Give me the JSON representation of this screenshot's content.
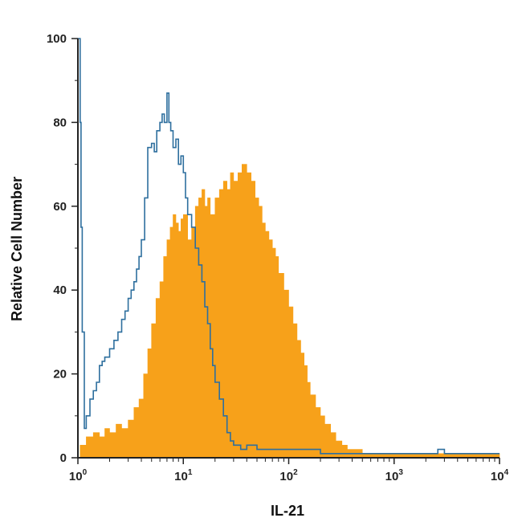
{
  "chart_data": {
    "type": "area",
    "xlabel": "IL-21",
    "ylabel": "Relative Cell Number",
    "x_scale": "log",
    "xlim": [
      1,
      10000
    ],
    "ylim": [
      0,
      100
    ],
    "x_ticks": [
      {
        "value": 1,
        "base": "10",
        "exp": "0"
      },
      {
        "value": 10,
        "base": "10",
        "exp": "1"
      },
      {
        "value": 100,
        "base": "10",
        "exp": "2"
      },
      {
        "value": 1000,
        "base": "10",
        "exp": "3"
      },
      {
        "value": 10000,
        "base": "10",
        "exp": "4"
      }
    ],
    "y_ticks": [
      0,
      20,
      40,
      60,
      80,
      100
    ],
    "grid": false,
    "series": [
      {
        "style": "filled",
        "color": "#f7a11a",
        "x": [
          1.05,
          1.2,
          1.4,
          1.6,
          1.8,
          2.0,
          2.3,
          2.6,
          3.0,
          3.4,
          3.8,
          4.2,
          4.6,
          5.0,
          5.5,
          6.0,
          6.5,
          7.0,
          7.5,
          8.0,
          8.5,
          9.0,
          9.5,
          10.0,
          11.0,
          12.0,
          13.0,
          14.0,
          15.0,
          16.0,
          17.0,
          18.0,
          20.0,
          22.0,
          24.0,
          26.0,
          28.0,
          30.0,
          33.0,
          36.0,
          40.0,
          44.0,
          48.0,
          52.0,
          56.0,
          60.0,
          65.0,
          70.0,
          75.0,
          80.0,
          90.0,
          100.0,
          110.0,
          120.0,
          130.0,
          140.0,
          150.0,
          160.0,
          180.0,
          200.0,
          220.0,
          250.0,
          280.0,
          320.0,
          360.0,
          400.0,
          500.0,
          700.0,
          1000.0,
          2000.0,
          5000.0,
          10000.0
        ],
        "y": [
          3,
          5,
          6,
          5,
          7,
          6,
          8,
          7,
          9,
          12,
          14,
          20,
          26,
          32,
          38,
          42,
          48,
          52,
          55,
          58,
          56,
          54,
          57,
          58,
          52,
          55,
          60,
          62,
          64,
          60,
          62,
          58,
          62,
          64,
          66,
          64,
          68,
          66,
          68,
          70,
          68,
          66,
          62,
          60,
          56,
          54,
          52,
          50,
          48,
          44,
          40,
          36,
          32,
          28,
          25,
          22,
          18,
          15,
          12,
          10,
          8,
          6,
          4,
          3,
          2,
          2,
          1,
          1,
          1,
          1,
          1,
          1
        ]
      },
      {
        "style": "outline",
        "color": "#2e6f9e",
        "x": [
          1.0,
          1.02,
          1.05,
          1.07,
          1.1,
          1.15,
          1.2,
          1.3,
          1.4,
          1.5,
          1.6,
          1.7,
          1.8,
          2.0,
          2.2,
          2.4,
          2.6,
          2.8,
          3.0,
          3.2,
          3.4,
          3.6,
          3.8,
          4.0,
          4.3,
          4.6,
          5.0,
          5.3,
          5.6,
          6.0,
          6.3,
          6.6,
          7.0,
          7.3,
          7.6,
          8.0,
          8.5,
          9.0,
          9.5,
          10.0,
          10.5,
          11.0,
          12.0,
          13.0,
          14.0,
          15.0,
          16.0,
          17.0,
          18.0,
          19.0,
          20.0,
          22.0,
          24.0,
          26.0,
          28.0,
          30.0,
          35.0,
          40.0,
          50.0,
          70.0,
          100.0,
          150.0,
          200.0,
          300.0,
          500.0,
          1000.0,
          2000.0,
          2600.0,
          2800.0,
          3000.0,
          4000.0,
          6000.0,
          10000.0
        ],
        "y": [
          100,
          100,
          80,
          55,
          30,
          7,
          10,
          14,
          16,
          18,
          22,
          23,
          24,
          26,
          28,
          30,
          33,
          35,
          38,
          40,
          42,
          45,
          48,
          52,
          62,
          74,
          75,
          73,
          78,
          80,
          82,
          80,
          87,
          80,
          78,
          74,
          76,
          70,
          72,
          68,
          62,
          58,
          55,
          50,
          46,
          42,
          36,
          32,
          26,
          22,
          18,
          14,
          10,
          6,
          4,
          3,
          2,
          3,
          2,
          2,
          2,
          2,
          1,
          1,
          1,
          1,
          1,
          2,
          2,
          1,
          1,
          1,
          1
        ]
      }
    ]
  }
}
